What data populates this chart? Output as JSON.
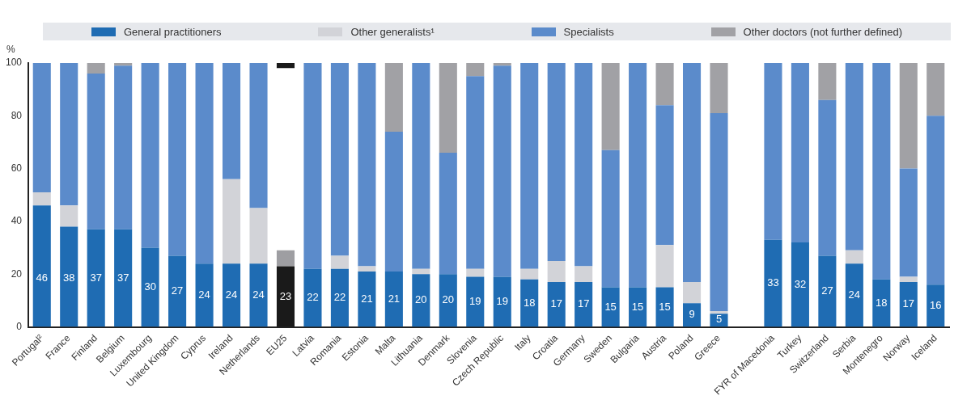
{
  "chart_data": {
    "type": "bar",
    "stacked": true,
    "ylabel": "%",
    "legend": "top",
    "grid": false,
    "categories": [
      "Portugal²",
      "France",
      "Finland",
      "Belgium",
      "Luxembourg",
      "United Kingdom",
      "Cyprus",
      "Ireland",
      "Netherlands",
      "EU25",
      "Latvia",
      "Romania",
      "Estonia",
      "Malta",
      "Lithuania",
      "Denmark",
      "Slovenia",
      "Czech Republic",
      "Italy",
      "Croatia",
      "Germany",
      "Sweden",
      "Bulgaria",
      "Austria",
      "Poland",
      "Greece",
      null,
      "FYR of Macedonia",
      "Turkey",
      "Switzerland",
      "Serbia",
      "Montenegro",
      "Norway",
      "Iceland"
    ],
    "ylim": [
      0,
      100
    ],
    "yticks": [
      0,
      20,
      40,
      60,
      80,
      100
    ],
    "series": [
      {
        "name": "General practitioners",
        "color": "#1f6cb3",
        "colors": [
          "#1f6cb3",
          "#1f6cb3",
          "#1f6cb3",
          "#1f6cb3",
          "#1f6cb3",
          "#1f6cb3",
          "#1f6cb3",
          "#1f6cb3",
          "#1f6cb3",
          "#1a1a1a",
          "#1f6cb3",
          "#1f6cb3",
          "#1f6cb3",
          "#1f6cb3",
          "#1f6cb3",
          "#1f6cb3",
          "#1f6cb3",
          "#1f6cb3",
          "#1f6cb3",
          "#1f6cb3",
          "#1f6cb3",
          "#1f6cb3",
          "#1f6cb3",
          "#1f6cb3",
          "#1f6cb3",
          "#1f6cb3",
          "#1f6cb3",
          "#1f6cb3",
          "#1f6cb3",
          "#1f6cb3",
          "#1f6cb3",
          "#1f6cb3",
          "#1f6cb3",
          "#1f6cb3"
        ],
        "values": [
          46,
          38,
          37,
          37,
          30,
          27,
          24,
          24,
          24,
          23,
          22,
          22,
          21,
          21,
          20,
          20,
          19,
          19,
          18,
          17,
          17,
          15,
          15,
          15,
          9,
          5,
          null,
          33,
          32,
          27,
          24,
          18,
          17,
          16
        ],
        "value_labels": [
          "46",
          "38",
          "37",
          "37",
          "30",
          "27",
          "24",
          "24",
          "24",
          "23",
          "22",
          "22",
          "21",
          "21",
          "20",
          "20",
          "19",
          "19",
          "18",
          "17",
          "17",
          "15",
          "15",
          "15",
          "9",
          "5",
          null,
          "33",
          "32",
          "27",
          "24",
          "18",
          "17",
          "16"
        ]
      },
      {
        "name": "Other generalists¹",
        "color": "#d2d3d8",
        "colors": [
          "#d2d3d8",
          "#d2d3d8",
          "#d2d3d8",
          "#d2d3d8",
          "#d2d3d8",
          "#d2d3d8",
          "#d2d3d8",
          "#d2d3d8",
          "#d2d3d8",
          "#9e9ea2",
          "#d2d3d8",
          "#d2d3d8",
          "#d2d3d8",
          "#d2d3d8",
          "#d2d3d8",
          "#d2d3d8",
          "#d2d3d8",
          "#d2d3d8",
          "#d2d3d8",
          "#d2d3d8",
          "#d2d3d8",
          "#d2d3d8",
          "#d2d3d8",
          "#d2d3d8",
          "#d2d3d8",
          "#d2d3d8",
          "#d2d3d8",
          "#d2d3d8",
          "#d2d3d8",
          "#d2d3d8",
          "#d2d3d8",
          "#d2d3d8",
          "#d2d3d8",
          "#d2d3d8"
        ],
        "values": [
          5,
          8,
          0,
          0,
          0,
          0,
          0,
          32,
          21,
          6,
          0,
          5,
          2,
          0,
          2,
          0,
          3,
          0,
          4,
          8,
          6,
          0,
          0,
          16,
          8,
          1,
          null,
          0,
          0,
          0,
          5,
          0,
          2,
          0
        ]
      },
      {
        "name": "Specialists",
        "color": "#5b8bcb",
        "colors": [
          "#5b8bcb",
          "#5b8bcb",
          "#5b8bcb",
          "#5b8bcb",
          "#5b8bcb",
          "#5b8bcb",
          "#5b8bcb",
          "#5b8bcb",
          "#5b8bcb",
          "#ffffff",
          "#5b8bcb",
          "#5b8bcb",
          "#5b8bcb",
          "#5b8bcb",
          "#5b8bcb",
          "#5b8bcb",
          "#5b8bcb",
          "#5b8bcb",
          "#5b8bcb",
          "#5b8bcb",
          "#5b8bcb",
          "#5b8bcb",
          "#5b8bcb",
          "#5b8bcb",
          "#5b8bcb",
          "#5b8bcb",
          "#5b8bcb",
          "#5b8bcb",
          "#5b8bcb",
          "#5b8bcb",
          "#5b8bcb",
          "#5b8bcb",
          "#5b8bcb",
          "#5b8bcb"
        ],
        "values": [
          49,
          54,
          59,
          62,
          70,
          73,
          76,
          44,
          55,
          69,
          78,
          73,
          77,
          53,
          78,
          46,
          73,
          80,
          78,
          75,
          77,
          52,
          85,
          53,
          83,
          75,
          null,
          67,
          68,
          59,
          71,
          82,
          41,
          64
        ]
      },
      {
        "name": "Other doctors (not further defined)",
        "color": "#a1a1a5",
        "colors": [
          "#a1a1a5",
          "#a1a1a5",
          "#a1a1a5",
          "#a1a1a5",
          "#a1a1a5",
          "#a1a1a5",
          "#a1a1a5",
          "#a1a1a5",
          "#a1a1a5",
          "#1a1a1a",
          "#a1a1a5",
          "#a1a1a5",
          "#a1a1a5",
          "#a1a1a5",
          "#a1a1a5",
          "#a1a1a5",
          "#a1a1a5",
          "#a1a1a5",
          "#a1a1a5",
          "#a1a1a5",
          "#a1a1a5",
          "#a1a1a5",
          "#a1a1a5",
          "#a1a1a5",
          "#a1a1a5",
          "#a1a1a5",
          "#a1a1a5",
          "#a1a1a5",
          "#a1a1a5",
          "#a1a1a5",
          "#a1a1a5",
          "#a1a1a5",
          "#a1a1a5",
          "#a1a1a5"
        ],
        "values": [
          0,
          0,
          4,
          1,
          0,
          0,
          0,
          0,
          0,
          2,
          0,
          0,
          0,
          26,
          0,
          34,
          5,
          1,
          0,
          0,
          0,
          33,
          0,
          16,
          0,
          19,
          null,
          0,
          0,
          14,
          0,
          0,
          40,
          20
        ]
      }
    ]
  }
}
